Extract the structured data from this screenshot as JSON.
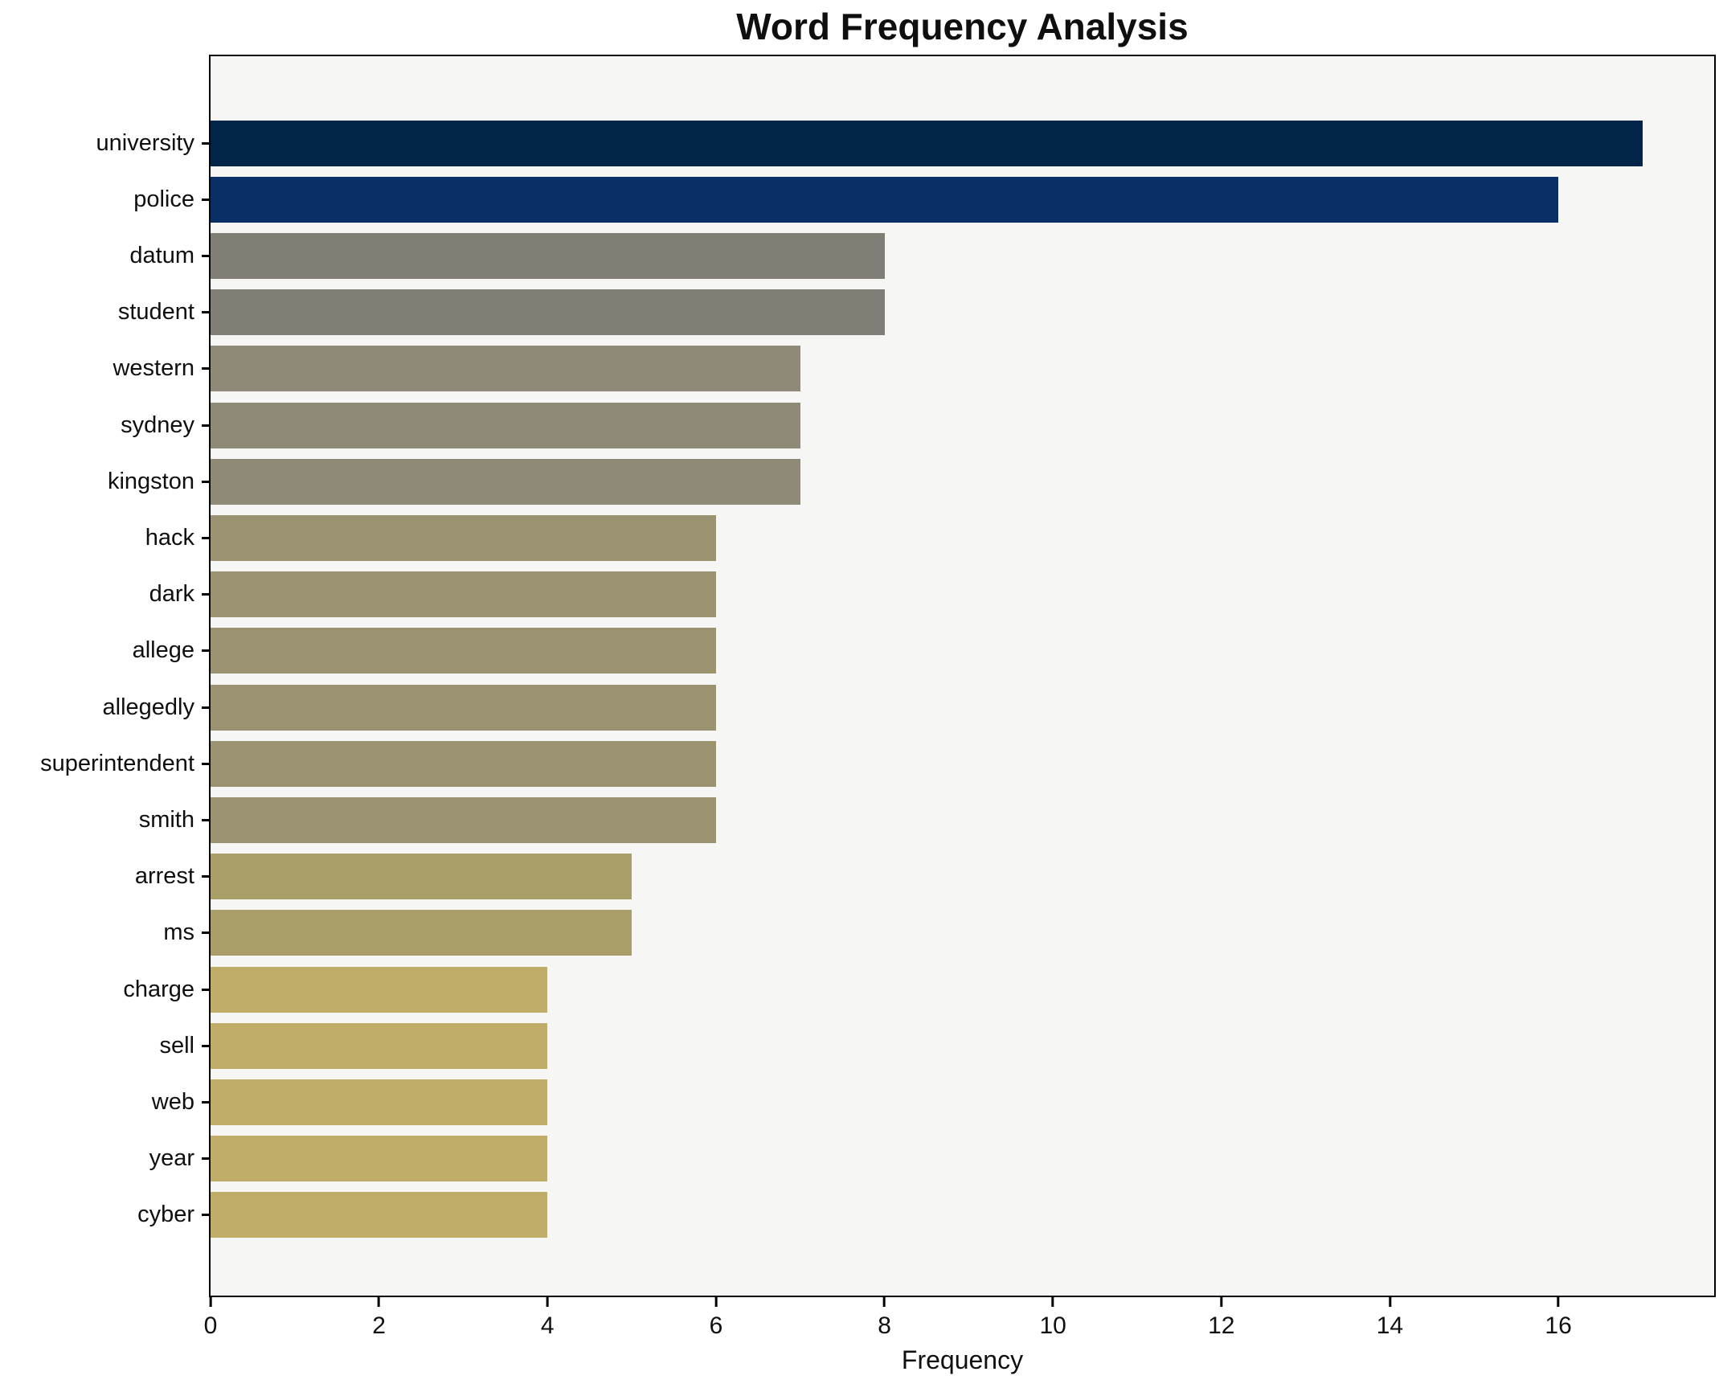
{
  "title": "Word Frequency Analysis",
  "chart_data": {
    "type": "bar",
    "orientation": "horizontal",
    "title": "Word Frequency Analysis",
    "xlabel": "Frequency",
    "ylabel": "",
    "categories": [
      "university",
      "police",
      "datum",
      "student",
      "western",
      "sydney",
      "kingston",
      "hack",
      "dark",
      "allege",
      "allegedly",
      "superintendent",
      "smith",
      "arrest",
      "ms",
      "charge",
      "sell",
      "web",
      "year",
      "cyber"
    ],
    "values": [
      17,
      16,
      8,
      8,
      7,
      7,
      7,
      6,
      6,
      6,
      6,
      6,
      6,
      5,
      5,
      4,
      4,
      4,
      4,
      4
    ],
    "bar_colors": [
      "#032449",
      "#083066",
      "#807e75",
      "#807e75",
      "#8f8977",
      "#8f8977",
      "#8f8977",
      "#9b9271",
      "#9b9271",
      "#9b9271",
      "#9b9271",
      "#9b9271",
      "#9b9271",
      "#a99e68",
      "#a99e68",
      "#beac68",
      "#beac68",
      "#beac68",
      "#beac68",
      "#beac68"
    ],
    "xlim": [
      0,
      17.85
    ],
    "x_ticks": [
      0,
      2,
      4,
      6,
      8,
      10,
      12,
      14,
      16
    ],
    "grid": false,
    "legend": null,
    "plot_background": "#f6f6f5",
    "figure_background": "#ffffff",
    "axis_color": "#000000"
  }
}
